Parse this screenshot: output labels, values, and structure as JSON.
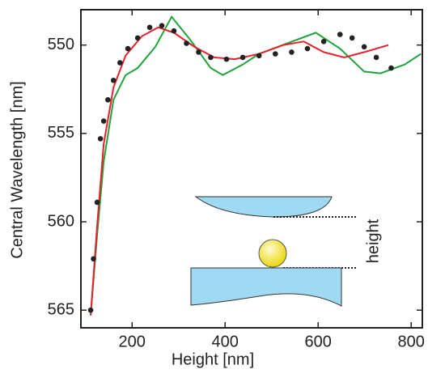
{
  "chart_data": {
    "type": "line",
    "xlabel": "Height [nm]",
    "ylabel": "Central Wavelength [nm]",
    "annotation": "height",
    "xlim": [
      90,
      824
    ],
    "ylim": [
      566,
      548
    ],
    "xticks": [
      200,
      400,
      600,
      800
    ],
    "yticks": [
      550,
      555,
      560,
      565
    ],
    "series": [
      {
        "mode": "markers",
        "color": "#222222",
        "x": [
          111,
          117,
          125,
          132,
          139,
          148,
          160,
          174,
          191,
          212,
          238,
          264,
          290,
          317,
          343,
          369,
          403,
          438,
          473,
          508,
          543,
          577,
          612,
          647,
          673,
          699,
          725,
          757
        ],
        "values": [
          565,
          562.1,
          558.9,
          555.3,
          554.3,
          553.1,
          552,
          551,
          550.2,
          549.6,
          549,
          548.9,
          549.2,
          549.9,
          550.4,
          550.7,
          550.8,
          550.7,
          550.6,
          550.5,
          550.4,
          550.2,
          549.8,
          549.4,
          549.6,
          550.1,
          550.7,
          551.3
        ]
      },
      {
        "mode": "line",
        "color": "#e8202a",
        "x": [
          111,
          125,
          139,
          160,
          186,
          221,
          256,
          290,
          334,
          377,
          421,
          473,
          525,
          569,
          612,
          656,
          699,
          751
        ],
        "values": [
          565.3,
          560.2,
          555.6,
          552.4,
          550.6,
          549.5,
          549,
          549.3,
          550.1,
          550.7,
          550.8,
          550.5,
          550,
          549.8,
          550.4,
          550.7,
          550.4,
          550
        ]
      },
      {
        "mode": "line",
        "color": "#1fa33a",
        "x": [
          111,
          125,
          139,
          160,
          186,
          212,
          250,
          285,
          325,
          369,
          395,
          438,
          473,
          534,
          595,
          647,
          699,
          734,
          786,
          821
        ],
        "values": [
          565.3,
          560.7,
          556.6,
          553.1,
          551.7,
          551.3,
          550.1,
          548.4,
          549.7,
          551.3,
          551.7,
          551.1,
          550.5,
          549.9,
          549.3,
          550.2,
          551.5,
          551.6,
          551.1,
          550.5
        ]
      }
    ]
  }
}
